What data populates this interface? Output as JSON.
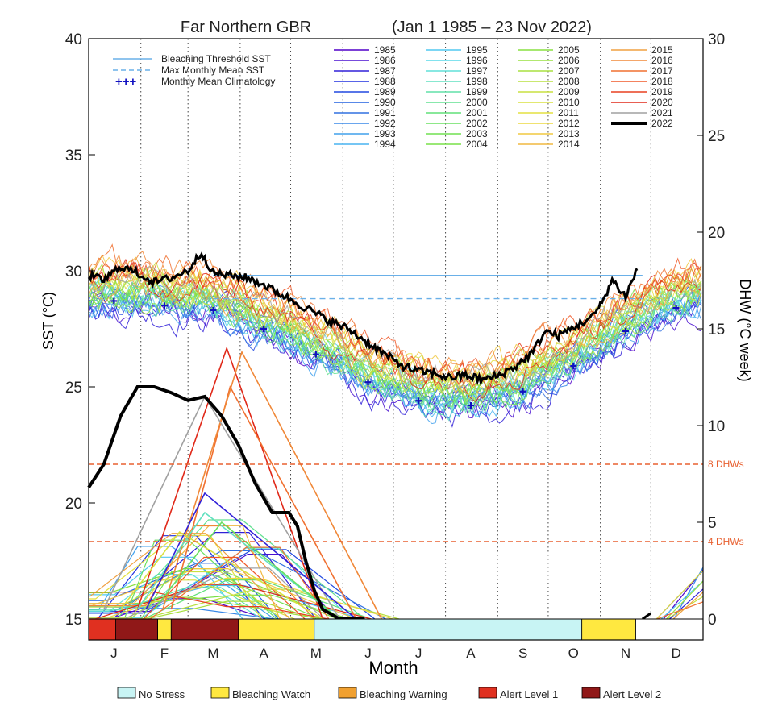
{
  "chart_data": {
    "type": "line",
    "title": "Far Northern GBR",
    "subtitle": "(Jan 1 1985 – 23 Nov 2022)",
    "xlabel": "Month",
    "ylabel_left": "SST (°C)",
    "ylabel_right": "DHW (°C week)",
    "ylim_left": [
      15,
      40
    ],
    "ylim_right": [
      0,
      30
    ],
    "x_range": [
      1,
      366
    ],
    "y_ticks_left": [
      15,
      20,
      25,
      30,
      35,
      40
    ],
    "y_ticks_right": [
      0,
      5,
      10,
      15,
      20,
      25,
      30
    ],
    "x_month_labels": [
      {
        "label": "J",
        "day": 16
      },
      {
        "label": "F",
        "day": 46
      },
      {
        "label": "M",
        "day": 75
      },
      {
        "label": "A",
        "day": 105
      },
      {
        "label": "M",
        "day": 136
      },
      {
        "label": "J",
        "day": 167
      },
      {
        "label": "J",
        "day": 197
      },
      {
        "label": "A",
        "day": 228
      },
      {
        "label": "S",
        "day": 259
      },
      {
        "label": "O",
        "day": 289
      },
      {
        "label": "N",
        "day": 320
      },
      {
        "label": "D",
        "day": 350
      }
    ],
    "month_boundaries": [
      32,
      60,
      91,
      121,
      152,
      182,
      213,
      244,
      274,
      305,
      335
    ],
    "grid": "vertical dotted at month boundaries",
    "reference_lines": {
      "bleaching_threshold_sst": 29.8,
      "max_monthly_mean_sst": 28.8,
      "dhw_thresholds": [
        {
          "label": "8 DHWs",
          "value": 8
        },
        {
          "label": "4 DHWs",
          "value": 4
        }
      ]
    },
    "legend_refs": [
      {
        "label": "Bleaching Threshold SST",
        "style": "solid",
        "color": "#6ab0e8"
      },
      {
        "label": "Max Monthly Mean SST",
        "style": "dashed",
        "color": "#6ab0e8"
      },
      {
        "label": "Monthly Mean Climatology",
        "style": "cross",
        "color": "#1010c0",
        "symbol": "+++"
      }
    ],
    "climatology": {
      "days": [
        16,
        46,
        75,
        105,
        136,
        167,
        197,
        228,
        259,
        289,
        320,
        350
      ],
      "values": [
        28.7,
        28.5,
        28.3,
        27.5,
        26.4,
        25.2,
        24.4,
        24.2,
        24.8,
        25.9,
        27.4,
        28.4
      ]
    },
    "year_series": [
      {
        "name": "1985",
        "color": "#5000c8"
      },
      {
        "name": "1986",
        "color": "#4a10d0"
      },
      {
        "name": "1987",
        "color": "#3020d8"
      },
      {
        "name": "1988",
        "color": "#2030e0"
      },
      {
        "name": "1989",
        "color": "#2048e0"
      },
      {
        "name": "1990",
        "color": "#2060e0"
      },
      {
        "name": "1991",
        "color": "#3070e0"
      },
      {
        "name": "1992",
        "color": "#3888e8"
      },
      {
        "name": "1993",
        "color": "#40a0ec"
      },
      {
        "name": "1994",
        "color": "#48b4f0"
      },
      {
        "name": "1995",
        "color": "#50c8f0"
      },
      {
        "name": "1996",
        "color": "#58d8e8"
      },
      {
        "name": "1997",
        "color": "#60e0d8"
      },
      {
        "name": "1998",
        "color": "#60e0c0"
      },
      {
        "name": "1999",
        "color": "#60e0a8"
      },
      {
        "name": "2000",
        "color": "#60e090"
      },
      {
        "name": "2001",
        "color": "#60e078"
      },
      {
        "name": "2002",
        "color": "#68e060"
      },
      {
        "name": "2003",
        "color": "#70e050"
      },
      {
        "name": "2004",
        "color": "#78e048"
      },
      {
        "name": "2005",
        "color": "#88e040"
      },
      {
        "name": "2006",
        "color": "#98e040"
      },
      {
        "name": "2007",
        "color": "#a8e040"
      },
      {
        "name": "2008",
        "color": "#b8e040"
      },
      {
        "name": "2009",
        "color": "#c8e040"
      },
      {
        "name": "2010",
        "color": "#d8e040"
      },
      {
        "name": "2011",
        "color": "#e4e040"
      },
      {
        "name": "2012",
        "color": "#ecd840"
      },
      {
        "name": "2013",
        "color": "#f0c840"
      },
      {
        "name": "2014",
        "color": "#f0b840"
      },
      {
        "name": "2015",
        "color": "#f0a040"
      },
      {
        "name": "2016",
        "color": "#f08838"
      },
      {
        "name": "2017",
        "color": "#f07030"
      },
      {
        "name": "2018",
        "color": "#f05828"
      },
      {
        "name": "2019",
        "color": "#e84020"
      },
      {
        "name": "2020",
        "color": "#e02818"
      },
      {
        "name": "2021",
        "color": "#a0a0a0"
      },
      {
        "name": "2022",
        "color": "#000000"
      }
    ],
    "sst_2022": {
      "days": [
        1,
        10,
        20,
        30,
        40,
        50,
        60,
        68,
        75,
        85,
        95,
        105,
        115,
        125,
        135,
        145,
        155,
        165,
        175,
        185,
        195,
        205,
        215,
        225,
        235,
        245,
        255,
        265,
        272,
        280,
        290,
        300,
        305,
        312,
        320,
        327
      ],
      "values": [
        29.8,
        29.6,
        30.2,
        29.9,
        29.5,
        29.7,
        30.0,
        30.8,
        29.9,
        29.8,
        29.7,
        29.4,
        29.0,
        28.6,
        28.2,
        27.8,
        27.5,
        27.0,
        26.5,
        26.0,
        25.7,
        25.6,
        25.4,
        25.5,
        25.3,
        25.5,
        25.9,
        26.5,
        27.4,
        27.2,
        27.6,
        28.0,
        28.5,
        29.6,
        28.9,
        30.1
      ]
    },
    "dhw_2022": {
      "days": [
        1,
        10,
        20,
        30,
        40,
        50,
        60,
        70,
        80,
        90,
        100,
        110,
        120,
        125,
        130,
        135,
        140,
        150,
        160,
        165,
        330,
        335
      ],
      "values": [
        6.8,
        8.0,
        10.5,
        12.0,
        12.0,
        11.7,
        11.3,
        11.5,
        10.5,
        9.0,
        7.0,
        5.5,
        5.5,
        4.8,
        3.0,
        1.5,
        0.5,
        0.0,
        0.0,
        0.0,
        0.0,
        0.3
      ]
    },
    "dhw_peaks": [
      {
        "year": "2020",
        "color": "#e02818",
        "start": 30,
        "peak_day": 83,
        "peak": 14.0,
        "end": 140
      },
      {
        "year": "2017",
        "color": "#f07030",
        "start": 50,
        "peak_day": 85,
        "peak": 12.0,
        "end": 160
      },
      {
        "year": "2016",
        "color": "#f08838",
        "start": 45,
        "peak_day": 92,
        "peak": 13.8,
        "end": 175
      },
      {
        "year": "2021",
        "color": "#a0a0a0",
        "start": 10,
        "peak_day": 70,
        "peak": 11.5,
        "end": 150
      },
      {
        "year": "1998",
        "color": "#60e0c0",
        "start": 30,
        "peak_day": 70,
        "peak": 5.5,
        "end": 150
      },
      {
        "year": "1987",
        "color": "#3020d8",
        "start": 35,
        "peak_day": 70,
        "peak": 6.5,
        "end": 160
      },
      {
        "year": "2002",
        "color": "#68e060",
        "start": 40,
        "peak_day": 80,
        "peak": 5.0,
        "end": 150
      },
      {
        "year": "2010",
        "color": "#d8e040",
        "start": 20,
        "peak_day": 55,
        "peak": 4.5,
        "end": 140
      }
    ],
    "alert_bar": {
      "segments": [
        {
          "start": 1,
          "end": 17,
          "level": "Alert Level 1"
        },
        {
          "start": 17,
          "end": 42,
          "level": "Alert Level 2"
        },
        {
          "start": 42,
          "end": 50,
          "level": "Bleaching Watch"
        },
        {
          "start": 50,
          "end": 90,
          "level": "Alert Level 2"
        },
        {
          "start": 90,
          "end": 135,
          "level": "Bleaching Watch"
        },
        {
          "start": 135,
          "end": 294,
          "level": "No Stress"
        },
        {
          "start": 294,
          "end": 326,
          "level": "Bleaching Watch"
        },
        {
          "start": 326,
          "end": 366,
          "level": "none"
        }
      ]
    },
    "status_legend": [
      {
        "label": "No Stress",
        "color": "#c8f4f4"
      },
      {
        "label": "Bleaching Watch",
        "color": "#ffe840"
      },
      {
        "label": "Bleaching Warning",
        "color": "#f0a030"
      },
      {
        "label": "Alert Level 1",
        "color": "#e03020"
      },
      {
        "label": "Alert Level 2",
        "color": "#901818"
      }
    ],
    "colors": {
      "no_stress": "#c8f4f4",
      "bleaching_watch": "#ffe840",
      "bleaching_warning": "#f0a030",
      "alert_level_1": "#e03020",
      "alert_level_2": "#901818",
      "threshold": "#6ab0e8",
      "dhw_ref": "#e86030",
      "climatology": "#1010c0"
    }
  }
}
